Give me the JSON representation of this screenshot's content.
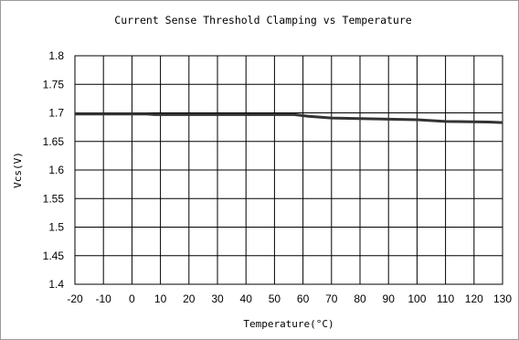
{
  "chart_data": {
    "type": "line",
    "title": "Current Sense Threshold Clamping vs Temperature",
    "xlabel": "Temperature(°C)",
    "ylabel": "Vcs(V)",
    "xlim": [
      -20,
      130
    ],
    "ylim": [
      1.4,
      1.8
    ],
    "x_ticks": [
      "-20",
      "-10",
      "0",
      "10",
      "20",
      "30",
      "40",
      "50",
      "60",
      "70",
      "80",
      "90",
      "100",
      "110",
      "120",
      "130"
    ],
    "y_ticks": [
      "1.8",
      "1.75",
      "1.7",
      "1.65",
      "1.6",
      "1.55",
      "1.5",
      "1.45",
      "1.4"
    ],
    "grid": true,
    "legend": "none",
    "series": [
      {
        "color": "#333333",
        "x": [
          -20,
          5,
          8,
          57,
          62,
          70,
          100,
          110,
          125,
          130
        ],
        "y": [
          1.698,
          1.698,
          1.697,
          1.697,
          1.694,
          1.691,
          1.688,
          1.685,
          1.684,
          1.683
        ]
      }
    ]
  }
}
